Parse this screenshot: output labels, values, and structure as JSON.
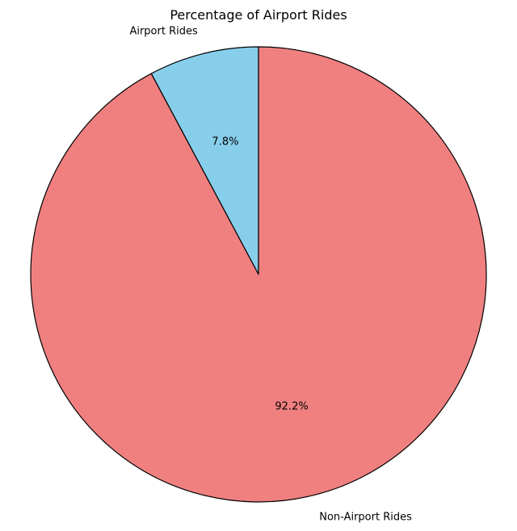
{
  "chart_data": {
    "type": "pie",
    "title": "Percentage of Airport Rides",
    "slices": [
      {
        "label": "Airport Rides",
        "value": 7.8,
        "pct_label": "7.8%",
        "color": "#87CEEB"
      },
      {
        "label": "Non-Airport Rides",
        "value": 92.2,
        "pct_label": "92.2%",
        "color": "#F08080"
      }
    ],
    "start_angle_deg": 90,
    "direction": "counterclockwise",
    "edge_color": "#000000",
    "legend": "none"
  }
}
